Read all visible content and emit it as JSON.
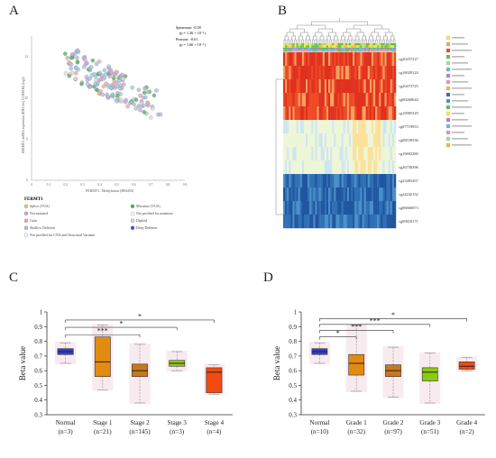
{
  "panels": {
    "a": {
      "letter": "A"
    },
    "b": {
      "letter": "B"
    },
    "c": {
      "letter": "C"
    },
    "d": {
      "letter": "D"
    }
  },
  "scatter": {
    "stats": {
      "spearman": "Spearman: -0.58",
      "spearman_p": "(p = 1.26 × 10⁻¹)",
      "pearson": "Pearson: -0.61",
      "pearson_p": "(p = 1.66 × 10⁻¹)"
    },
    "xlabel": "FERMT1: Methylation (HM450)",
    "ylabel": "FERMT1: mRNA expression (RNA Seq V2 RSEM) (log2)",
    "legend_title": "FERMT1",
    "legend": [
      {
        "label": "Splice (VUS)",
        "color": "#f5c26b"
      },
      {
        "label": "Missense (VUS)",
        "color": "#4fb04f"
      },
      {
        "label": "Not mutated",
        "color": "#c8a6d8"
      },
      {
        "label": "Not profiled for mutation",
        "color": "#ffffff"
      },
      {
        "label": "Gain",
        "color": "#f4a3a3"
      },
      {
        "label": "Diploid",
        "color": "#dcdcdc"
      },
      {
        "label": "Shallow Deletion",
        "color": "#8fc9e8"
      },
      {
        "label": "Deep Deletion",
        "color": "#2e4fd6"
      },
      {
        "label": "Not profiled for CNA and Structural Variants",
        "color": "#ffffff"
      }
    ],
    "x_ticks": [
      "0",
      "0.1",
      "0.2",
      "0.3",
      "0.4",
      "0.5",
      "0.6",
      "0.7",
      "0.8",
      "0.9"
    ],
    "y_ticks": [
      "6",
      "8",
      "10",
      "12"
    ]
  },
  "heatmap": {
    "probes": [
      "cg20257227",
      "cg16028124",
      "cg20473725",
      "cg00268644",
      "cg10985329",
      "cg07719953",
      "cg08539536",
      "cg19692380",
      "cg26758396",
      "cg23483267",
      "cg24242132",
      "cg06666073",
      "cg09818171"
    ]
  },
  "boxC": {
    "ylabel": "Beta value",
    "sig": [
      "***",
      "*",
      "*"
    ]
  },
  "boxD": {
    "ylabel": "Beta value",
    "sig": [
      "*",
      "***",
      "***",
      "*"
    ]
  },
  "chart_data": [
    {
      "type": "box",
      "panel": "C",
      "ylabel": "Beta value",
      "ylim": [
        0.3,
        1.0
      ],
      "y_ticks": [
        "0.3",
        "0.4",
        "0.5",
        "0.6",
        "0.7",
        "0.8",
        "0.9",
        "1"
      ],
      "categories": [
        "Normal\n(n=3)",
        "Stage 1\n(n=21)",
        "Stage 2\n(n=145)",
        "Stage 3\n(n=3)",
        "Stage 4\n(n=4)"
      ],
      "cat_names": [
        "Normal",
        "Stage 1",
        "Stage 2",
        "Stage 3",
        "Stage 4"
      ],
      "cat_ns": [
        "(n=3)",
        "(n=21)",
        "(n=145)",
        "(n=3)",
        "(n=4)"
      ],
      "colors": [
        "#3040d8",
        "#e38b10",
        "#c7781c",
        "#8acb10",
        "#f24a10"
      ],
      "boxes": [
        {
          "min": 0.65,
          "q1": 0.71,
          "median": 0.73,
          "q3": 0.75,
          "max": 0.79
        },
        {
          "min": 0.47,
          "q1": 0.56,
          "median": 0.66,
          "q3": 0.83,
          "max": 0.91
        },
        {
          "min": 0.38,
          "q1": 0.56,
          "median": 0.6,
          "q3": 0.645,
          "max": 0.78
        },
        {
          "min": 0.6,
          "q1": 0.63,
          "median": 0.65,
          "q3": 0.67,
          "max": 0.73
        },
        {
          "min": 0.44,
          "q1": 0.45,
          "median": 0.59,
          "q3": 0.62,
          "max": 0.64
        }
      ],
      "brackets": [
        {
          "from": 0,
          "to": 2,
          "y": 0.845,
          "label": "***"
        },
        {
          "from": 0,
          "to": 3,
          "y": 0.895,
          "label": "*"
        },
        {
          "from": 0,
          "to": 4,
          "y": 0.945,
          "label": "*"
        }
      ]
    },
    {
      "type": "box",
      "panel": "D",
      "ylabel": "Beta value",
      "ylim": [
        0.3,
        1.0
      ],
      "y_ticks": [
        "0.3",
        "0.4",
        "0.5",
        "0.6",
        "0.7",
        "0.8",
        "0.9",
        "1"
      ],
      "categories": [
        "Normal\n(n=10)",
        "Grade 1\n(n=32)",
        "Grade 2\n(n=97)",
        "Grade 3\n(n=51)",
        "Grade 4\n(n=2)"
      ],
      "cat_names": [
        "Normal",
        "Grade 1",
        "Grade 2",
        "Grade 3",
        "Grade 4"
      ],
      "cat_ns": [
        "(n=10)",
        "(n=32)",
        "(n=97)",
        "(n=51)",
        "(n=2)"
      ],
      "colors": [
        "#3040d8",
        "#e38b10",
        "#c7781c",
        "#8acb10",
        "#f24a10"
      ],
      "boxes": [
        {
          "min": 0.65,
          "q1": 0.71,
          "median": 0.73,
          "q3": 0.75,
          "max": 0.79
        },
        {
          "min": 0.46,
          "q1": 0.57,
          "median": 0.65,
          "q3": 0.71,
          "max": 0.91
        },
        {
          "min": 0.42,
          "q1": 0.56,
          "median": 0.6,
          "q3": 0.64,
          "max": 0.76
        },
        {
          "min": 0.38,
          "q1": 0.53,
          "median": 0.59,
          "q3": 0.62,
          "max": 0.72
        },
        {
          "min": 0.6,
          "q1": 0.61,
          "median": 0.63,
          "q3": 0.66,
          "max": 0.69
        }
      ],
      "brackets": [
        {
          "from": 0,
          "to": 1,
          "y": 0.83,
          "label": "*"
        },
        {
          "from": 0,
          "to": 2,
          "y": 0.875,
          "label": "***"
        },
        {
          "from": 0,
          "to": 3,
          "y": 0.915,
          "label": "***"
        },
        {
          "from": 0,
          "to": 4,
          "y": 0.955,
          "label": "*"
        }
      ]
    }
  ]
}
